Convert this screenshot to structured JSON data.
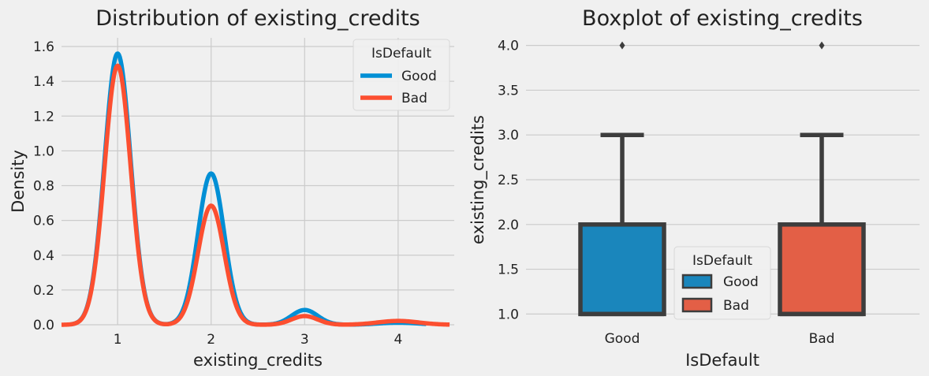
{
  "chart_data": [
    {
      "type": "line",
      "title": "Distribution of existing_credits",
      "xlabel": "existing_credits",
      "ylabel": "Density",
      "xlim": [
        0.4,
        4.6
      ],
      "ylim": [
        0,
        1.65
      ],
      "xticks": [
        1,
        2,
        3,
        4
      ],
      "yticks": [
        0.0,
        0.2,
        0.4,
        0.6,
        0.8,
        1.0,
        1.2,
        1.4,
        1.6
      ],
      "grid": true,
      "legend": {
        "title": "IsDefault",
        "position": "top-right"
      },
      "series": [
        {
          "name": "Good",
          "color": "#008fd5",
          "peaks": [
            {
              "x": 1,
              "y": 1.56
            },
            {
              "x": 2,
              "y": 0.87
            },
            {
              "x": 3,
              "y": 0.085
            },
            {
              "x": 4,
              "y": 0.012
            }
          ],
          "x_range": [
            0.5,
            4.3
          ]
        },
        {
          "name": "Bad",
          "color": "#fc4f30",
          "peaks": [
            {
              "x": 1,
              "y": 1.49
            },
            {
              "x": 2,
              "y": 0.685
            },
            {
              "x": 3,
              "y": 0.05
            },
            {
              "x": 4,
              "y": 0.022
            }
          ],
          "x_range": [
            0.4,
            4.55
          ]
        }
      ]
    },
    {
      "type": "box",
      "title": "Boxplot of existing_credits",
      "xlabel": "IsDefault",
      "ylabel": "existing_credits",
      "categories": [
        "Good",
        "Bad"
      ],
      "ylim": [
        0.88,
        4.12
      ],
      "yticks": [
        1.0,
        1.5,
        2.0,
        2.5,
        3.0,
        3.5,
        4.0
      ],
      "grid": true,
      "legend": {
        "title": "IsDefault",
        "position": "lower-center"
      },
      "boxes": [
        {
          "name": "Good",
          "color": "#1a86bc",
          "q1": 1.0,
          "median": 1.0,
          "q3": 2.0,
          "whisker_low": 1.0,
          "whisker_high": 3.0,
          "outliers": [
            4.0
          ]
        },
        {
          "name": "Bad",
          "color": "#e35f46",
          "q1": 1.0,
          "median": 1.0,
          "q3": 2.0,
          "whisker_low": 1.0,
          "whisker_high": 3.0,
          "outliers": [
            4.0
          ]
        }
      ]
    }
  ]
}
